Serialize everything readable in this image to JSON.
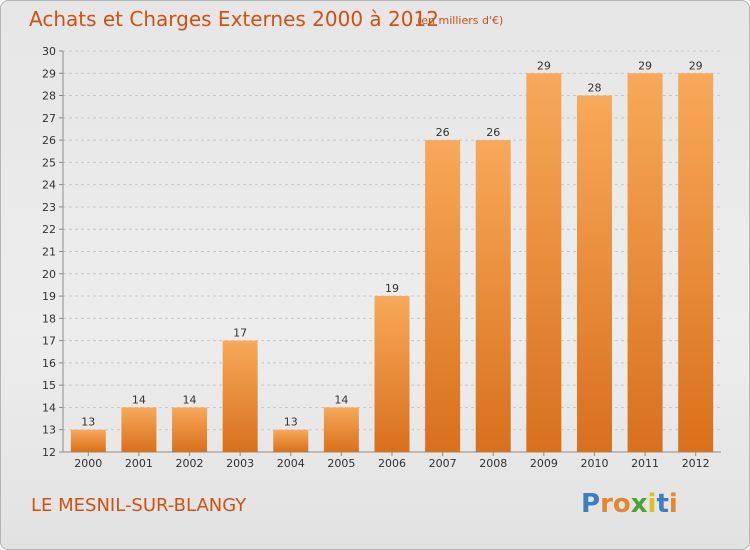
{
  "header": {
    "title": "Achats et Charges Externes 2000 à 2012",
    "subtitle": "(en milliers d'€)"
  },
  "footer": {
    "commune": "LE MESNIL-SUR-BLANGY",
    "brand": "Proxiti",
    "brand_letters": [
      {
        "char": "P",
        "color": "#3a7fc1"
      },
      {
        "char": "r",
        "color": "#e8862a"
      },
      {
        "char": "o",
        "color": "#e8862a"
      },
      {
        "char": "x",
        "color": "#4aa336"
      },
      {
        "char": "i",
        "color": "#d9c21c"
      },
      {
        "char": "t",
        "color": "#3a7fc1"
      },
      {
        "char": "i",
        "color": "#e8862a"
      }
    ]
  },
  "colors": {
    "bar_light": "#f8a959",
    "bar_dark": "#d8701c",
    "title": "#d4500f",
    "grid": "#c8c8c8",
    "axis": "#8c8c8c",
    "text": "#333333"
  },
  "chart_data": {
    "type": "bar",
    "title": "Achats et Charges Externes 2000 à 2012",
    "subtitle": "(en milliers d'€)",
    "categories": [
      "2000",
      "2001",
      "2002",
      "2003",
      "2004",
      "2005",
      "2006",
      "2007",
      "2008",
      "2009",
      "2010",
      "2011",
      "2012"
    ],
    "values": [
      13,
      14,
      14,
      17,
      13,
      14,
      19,
      26,
      26,
      29,
      28,
      29,
      29
    ],
    "ylim": [
      12,
      30
    ],
    "yticks": [
      12,
      13,
      14,
      15,
      16,
      17,
      18,
      19,
      20,
      21,
      22,
      23,
      24,
      25,
      26,
      27,
      28,
      29,
      30
    ],
    "grid": true,
    "data_labels": true,
    "xlabel": "",
    "ylabel": ""
  }
}
